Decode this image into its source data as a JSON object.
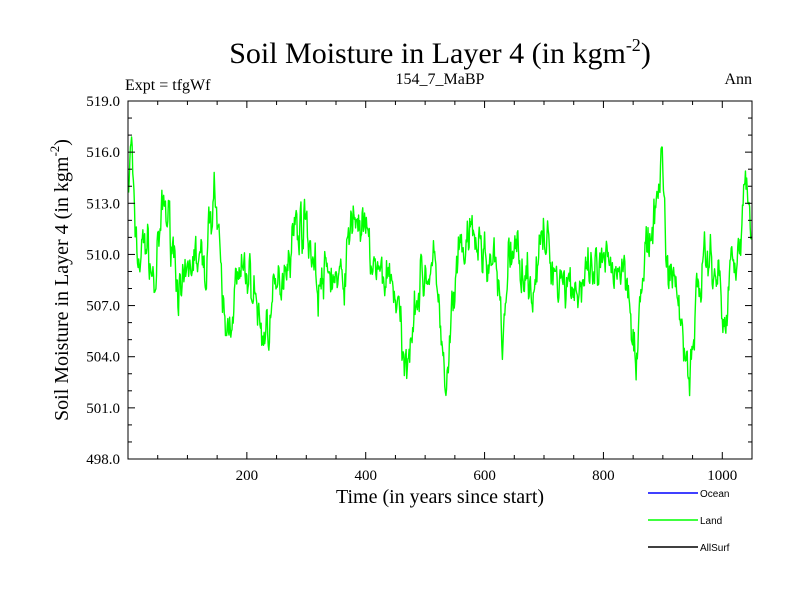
{
  "chart_data": {
    "type": "line",
    "title": {
      "main": "Soil Moisture in Layer 4 (in kgm",
      "sup": "-2",
      "close": ")"
    },
    "left_label": "Expt = tfgWf",
    "center_label": "154_7_MaBP",
    "right_label": "Ann",
    "xlabel": "Time (in years since start)",
    "ylabel": {
      "main": "Soil Moisture in Layer 4 (in kgm",
      "sup": "-2",
      "close": ")"
    },
    "xlim": [
      0,
      1050
    ],
    "ylim": [
      498.0,
      519.0
    ],
    "x_ticks": [
      200,
      400,
      600,
      800,
      1000
    ],
    "x_tick_labels": [
      "200",
      "400",
      "600",
      "800",
      "1000"
    ],
    "y_ticks": [
      498.0,
      501.0,
      504.0,
      507.0,
      510.0,
      513.0,
      516.0,
      519.0
    ],
    "y_tick_labels": [
      "498.0",
      "501.0",
      "504.0",
      "507.0",
      "510.0",
      "513.0",
      "516.0",
      "519.0"
    ],
    "legend": {
      "placement": "bottom-right",
      "entries": [
        {
          "name": "Ocean",
          "color": "#0000ff"
        },
        {
          "name": "Land",
          "color": "#00ff00"
        },
        {
          "name": "AllSurf",
          "color": "#000000"
        }
      ]
    },
    "series": [
      {
        "name": "Land",
        "color": "#00ff00",
        "x_start": 1,
        "x_step": 1,
        "count": 1050,
        "noise_seed": 7,
        "noise_amplitude": 1.2,
        "anchors": [
          [
            1,
            514.0
          ],
          [
            6,
            516.8
          ],
          [
            10,
            512.0
          ],
          [
            18,
            509.5
          ],
          [
            30,
            511.0
          ],
          [
            45,
            508.0
          ],
          [
            60,
            513.0
          ],
          [
            75,
            511.0
          ],
          [
            90,
            507.0
          ],
          [
            110,
            510.0
          ],
          [
            130,
            509.0
          ],
          [
            145,
            514.5
          ],
          [
            155,
            509.0
          ],
          [
            165,
            505.0
          ],
          [
            180,
            508.0
          ],
          [
            200,
            509.0
          ],
          [
            215,
            507.5
          ],
          [
            225,
            505.0
          ],
          [
            240,
            506.5
          ],
          [
            260,
            509.0
          ],
          [
            280,
            511.5
          ],
          [
            300,
            512.0
          ],
          [
            320,
            508.0
          ],
          [
            340,
            509.0
          ],
          [
            360,
            508.0
          ],
          [
            380,
            512.5
          ],
          [
            400,
            511.0
          ],
          [
            420,
            508.5
          ],
          [
            440,
            509.0
          ],
          [
            455,
            507.0
          ],
          [
            465,
            502.5
          ],
          [
            480,
            507.0
          ],
          [
            500,
            509.0
          ],
          [
            520,
            509.0
          ],
          [
            535,
            501.0
          ],
          [
            545,
            506.5
          ],
          [
            560,
            510.0
          ],
          [
            580,
            511.0
          ],
          [
            600,
            510.0
          ],
          [
            620,
            509.0
          ],
          [
            630,
            504.5
          ],
          [
            640,
            510.0
          ],
          [
            660,
            510.0
          ],
          [
            680,
            508.0
          ],
          [
            700,
            511.0
          ],
          [
            720,
            509.0
          ],
          [
            740,
            508.5
          ],
          [
            760,
            508.0
          ],
          [
            780,
            508.5
          ],
          [
            800,
            509.0
          ],
          [
            820,
            509.5
          ],
          [
            840,
            509.0
          ],
          [
            855,
            504.0
          ],
          [
            870,
            510.0
          ],
          [
            885,
            511.0
          ],
          [
            898,
            516.5
          ],
          [
            905,
            510.0
          ],
          [
            920,
            508.5
          ],
          [
            935,
            505.0
          ],
          [
            945,
            503.0
          ],
          [
            960,
            508.5
          ],
          [
            980,
            510.0
          ],
          [
            995,
            508.5
          ],
          [
            1005,
            505.0
          ],
          [
            1015,
            510.0
          ],
          [
            1030,
            511.0
          ],
          [
            1040,
            514.0
          ],
          [
            1050,
            511.5
          ]
        ]
      }
    ]
  }
}
